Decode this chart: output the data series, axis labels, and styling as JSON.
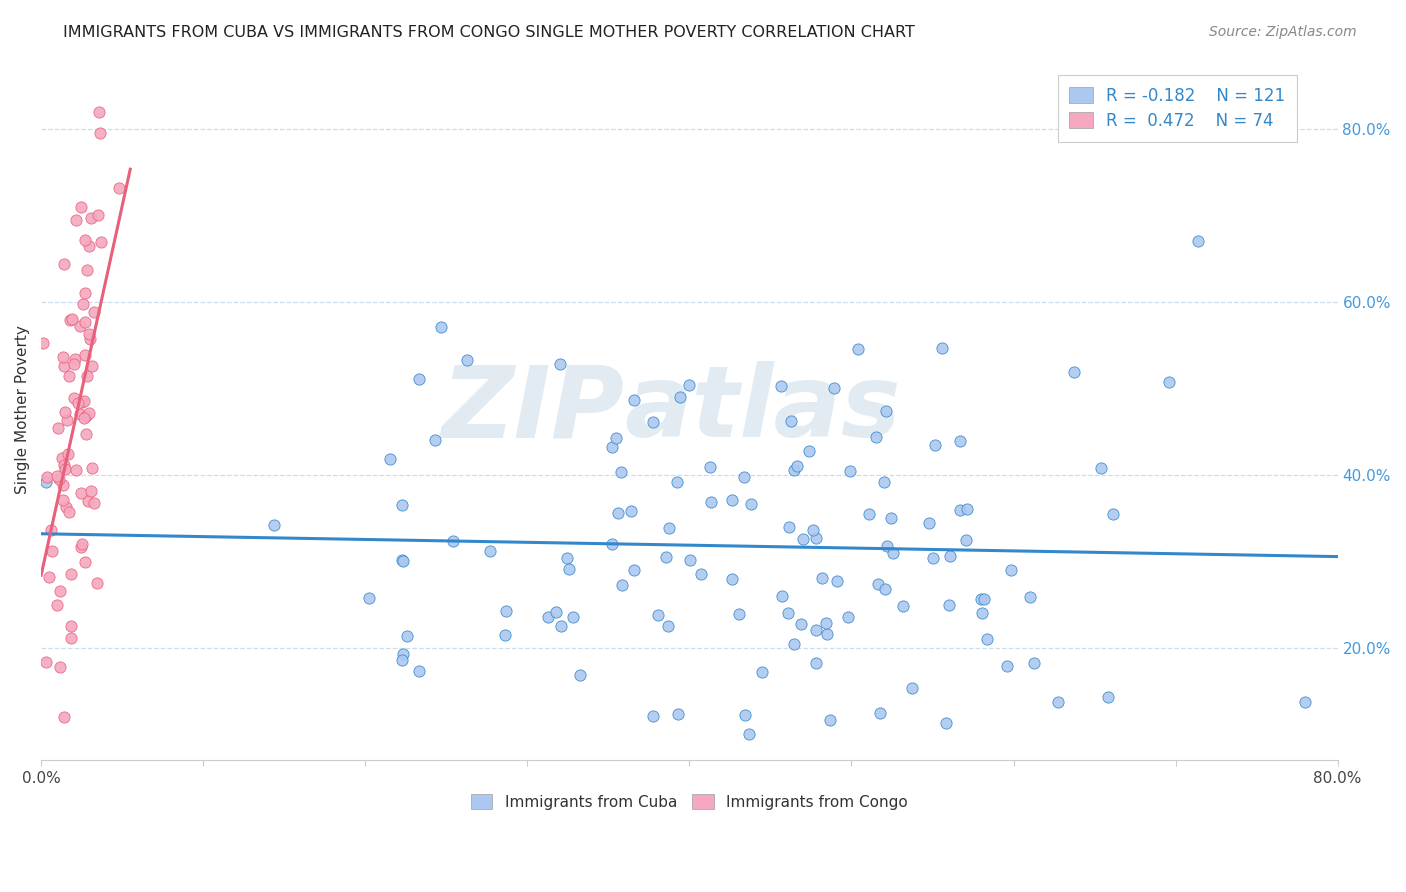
{
  "title": "IMMIGRANTS FROM CUBA VS IMMIGRANTS FROM CONGO SINGLE MOTHER POVERTY CORRELATION CHART",
  "source_text": "Source: ZipAtlas.com",
  "ylabel": "Single Mother Poverty",
  "right_yticks": [
    "20.0%",
    "40.0%",
    "60.0%",
    "80.0%"
  ],
  "right_ytick_vals": [
    0.2,
    0.4,
    0.6,
    0.8
  ],
  "xmin": 0.0,
  "xmax": 0.8,
  "ymin": 0.07,
  "ymax": 0.88,
  "R_cuba": -0.182,
  "N_cuba": 121,
  "R_congo": 0.472,
  "N_congo": 74,
  "color_cuba": "#adc8f0",
  "color_congo": "#f5a8bf",
  "line_cuba": "#3388cc",
  "line_congo": "#e8607a",
  "background_color": "#ffffff",
  "title_color": "#222222",
  "right_tick_color": "#4499dd",
  "grid_color": "#ccddee",
  "watermark_color": "#dde8f0"
}
